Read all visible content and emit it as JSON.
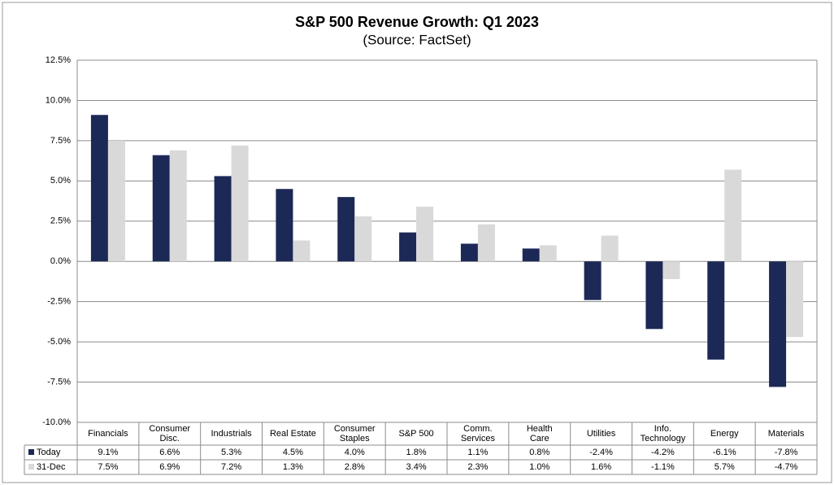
{
  "chart_data": {
    "type": "bar",
    "title": "S&P 500 Revenue Growth: Q1 2023",
    "subtitle": "(Source: FactSet)",
    "categories": [
      "Financials",
      "Consumer\nDisc.",
      "Industrials",
      "Real Estate",
      "Consumer\nStaples",
      "S&P 500",
      "Comm.\nServices",
      "Health\nCare",
      "Utilities",
      "Info.\nTechnology",
      "Energy",
      "Materials"
    ],
    "series": [
      {
        "name": "Today",
        "color": "#1c2957",
        "values": [
          9.1,
          6.6,
          5.3,
          4.5,
          4.0,
          1.8,
          1.1,
          0.8,
          -2.4,
          -4.2,
          -6.1,
          -7.8
        ],
        "value_labels": [
          "9.1%",
          "6.6%",
          "5.3%",
          "4.5%",
          "4.0%",
          "1.8%",
          "1.1%",
          "0.8%",
          "-2.4%",
          "-4.2%",
          "-6.1%",
          "-7.8%"
        ]
      },
      {
        "name": "31-Dec",
        "color": "#d9d9d9",
        "values": [
          7.5,
          6.9,
          7.2,
          1.3,
          2.8,
          3.4,
          2.3,
          1.0,
          1.6,
          -1.1,
          5.7,
          -4.7
        ],
        "value_labels": [
          "7.5%",
          "6.9%",
          "7.2%",
          "1.3%",
          "2.8%",
          "3.4%",
          "2.3%",
          "1.0%",
          "1.6%",
          "-1.1%",
          "5.7%",
          "-4.7%"
        ]
      }
    ],
    "ylim": [
      -10,
      12.5
    ],
    "yticks": [
      {
        "value": -10,
        "label": "-10.0%"
      },
      {
        "value": -7.5,
        "label": "-7.5%"
      },
      {
        "value": -5,
        "label": "-5.0%"
      },
      {
        "value": -2.5,
        "label": "-2.5%"
      },
      {
        "value": 0,
        "label": "0.0%"
      },
      {
        "value": 2.5,
        "label": "2.5%"
      },
      {
        "value": 5,
        "label": "5.0%"
      },
      {
        "value": 7.5,
        "label": "7.5%"
      },
      {
        "value": 10,
        "label": "10.0%"
      },
      {
        "value": 12.5,
        "label": "12.5%"
      }
    ],
    "grid": true
  }
}
